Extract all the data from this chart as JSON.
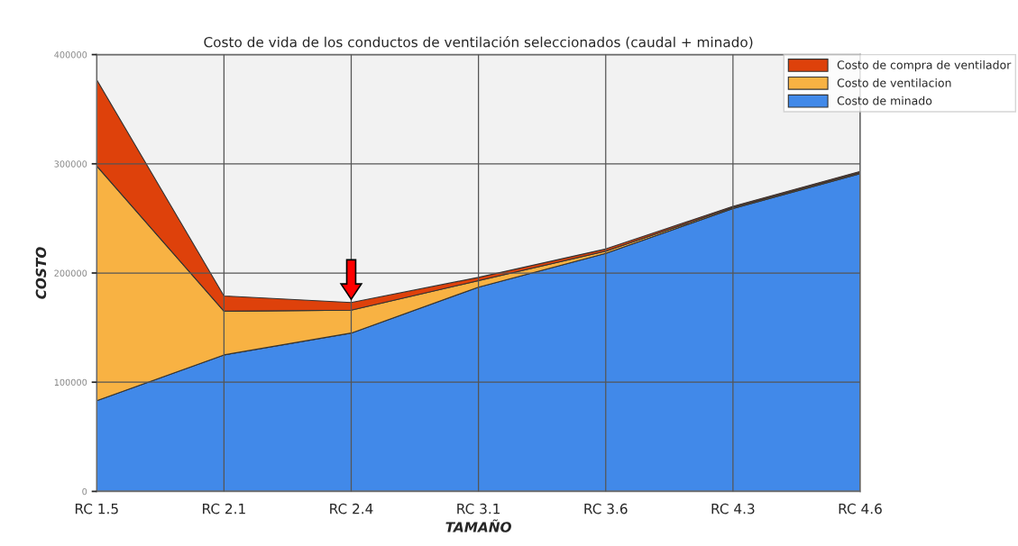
{
  "chart_data": {
    "type": "area",
    "stacked": true,
    "title": "Costo de vida de los conductos de ventilación seleccionados (caudal + minado)",
    "xlabel": "TAMAÑO",
    "ylabel": "COSTO",
    "categories": [
      "RC 1.5",
      "RC 2.1",
      "RC 2.4",
      "RC 3.1",
      "RC 3.6",
      "RC 4.3",
      "RC 4.6"
    ],
    "series": [
      {
        "name": "Costo de minado",
        "color": "#4189e9",
        "values": [
          83000,
          125000,
          145000,
          187000,
          218000,
          259000,
          291000
        ]
      },
      {
        "name": "Costo de ventilacion",
        "color": "#f8b243",
        "values": [
          215000,
          40000,
          21000,
          6000,
          2000,
          1000,
          1000
        ]
      },
      {
        "name": "Costo de compra de ventilador",
        "color": "#de410b",
        "values": [
          79000,
          14000,
          7000,
          3000,
          2000,
          1000,
          1000
        ]
      }
    ],
    "ylim": [
      0,
      400000
    ],
    "yticks": [
      0,
      100000,
      200000,
      300000,
      400000
    ],
    "grid": true,
    "legend": "top right"
  }
}
